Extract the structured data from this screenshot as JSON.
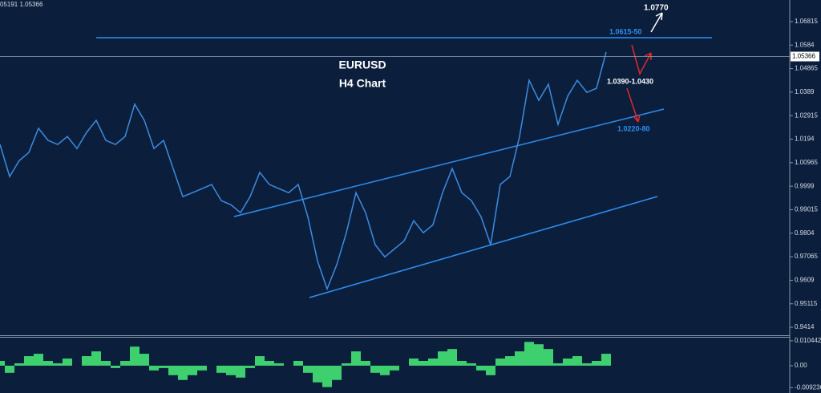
{
  "chart_data": [
    {
      "type": "line",
      "title": "EURUSD",
      "subtitle": "H4 Chart",
      "info_label": "05191 1.05366",
      "values": [
        1.0172,
        1.0039,
        1.0105,
        1.0139,
        1.0239,
        1.0189,
        1.0172,
        1.0205,
        1.0155,
        1.0222,
        1.0272,
        1.0189,
        1.0172,
        1.0205,
        1.0339,
        1.0272,
        1.0155,
        1.0189,
        1.0072,
        0.9956,
        0.9972,
        0.9989,
        1.0006,
        0.9939,
        0.9922,
        0.9889,
        0.9956,
        1.0056,
        1.0006,
        0.9989,
        0.9972,
        1.0006,
        0.9872,
        0.9689,
        0.9573,
        0.9673,
        0.9806,
        0.9972,
        0.9889,
        0.9756,
        0.9706,
        0.9739,
        0.9772,
        0.9856,
        0.9806,
        0.9839,
        0.9972,
        1.0072,
        0.9972,
        0.9939,
        0.9872,
        0.9756,
        1.0006,
        1.0039,
        1.0205,
        1.0438,
        1.0355,
        1.0422,
        1.0255,
        1.0372,
        1.0438,
        1.0388,
        1.0405,
        1.0555
      ],
      "color": "#3d8be0",
      "current_price": 1.05366,
      "ylim": [
        0.9381,
        1.0771
      ],
      "yticks": [
        1.06815,
        1.0584,
        1.04865,
        1.0389,
        1.02915,
        1.0194,
        1.00965,
        0.9999,
        0.99015,
        0.9804,
        0.97065,
        0.9609,
        0.95115,
        0.9414
      ],
      "annotations": [
        "1.0770",
        "1.0615-50",
        "1.0390-1.0430",
        "1.0220-80"
      ]
    },
    {
      "type": "bar",
      "values": [
        0.002,
        -0.003,
        0.001,
        0.004,
        0.005,
        0.002,
        0.001,
        0.003,
        0.0,
        0.004,
        0.006,
        0.002,
        -0.001,
        0.002,
        0.008,
        0.005,
        -0.002,
        -0.001,
        -0.004,
        -0.006,
        -0.004,
        -0.002,
        0.0,
        -0.003,
        -0.004,
        -0.005,
        -0.001,
        0.004,
        0.002,
        0.001,
        0.0,
        0.002,
        -0.003,
        -0.007,
        -0.009,
        -0.006,
        0.001,
        0.006,
        0.002,
        -0.003,
        -0.004,
        -0.002,
        0.0,
        0.003,
        0.002,
        0.003,
        0.006,
        0.007,
        0.002,
        0.001,
        -0.002,
        -0.004,
        0.003,
        0.004,
        0.006,
        0.01,
        0.009,
        0.007,
        0.001,
        0.003,
        0.004,
        0.001,
        0.002,
        0.005
      ],
      "color": "#3ecf6e",
      "ylim": [
        -0.0108,
        0.0121
      ],
      "yticks": [
        0.010442,
        {
          "value": 0,
          "label": "0.00"
        },
        -0.009236
      ]
    }
  ]
}
